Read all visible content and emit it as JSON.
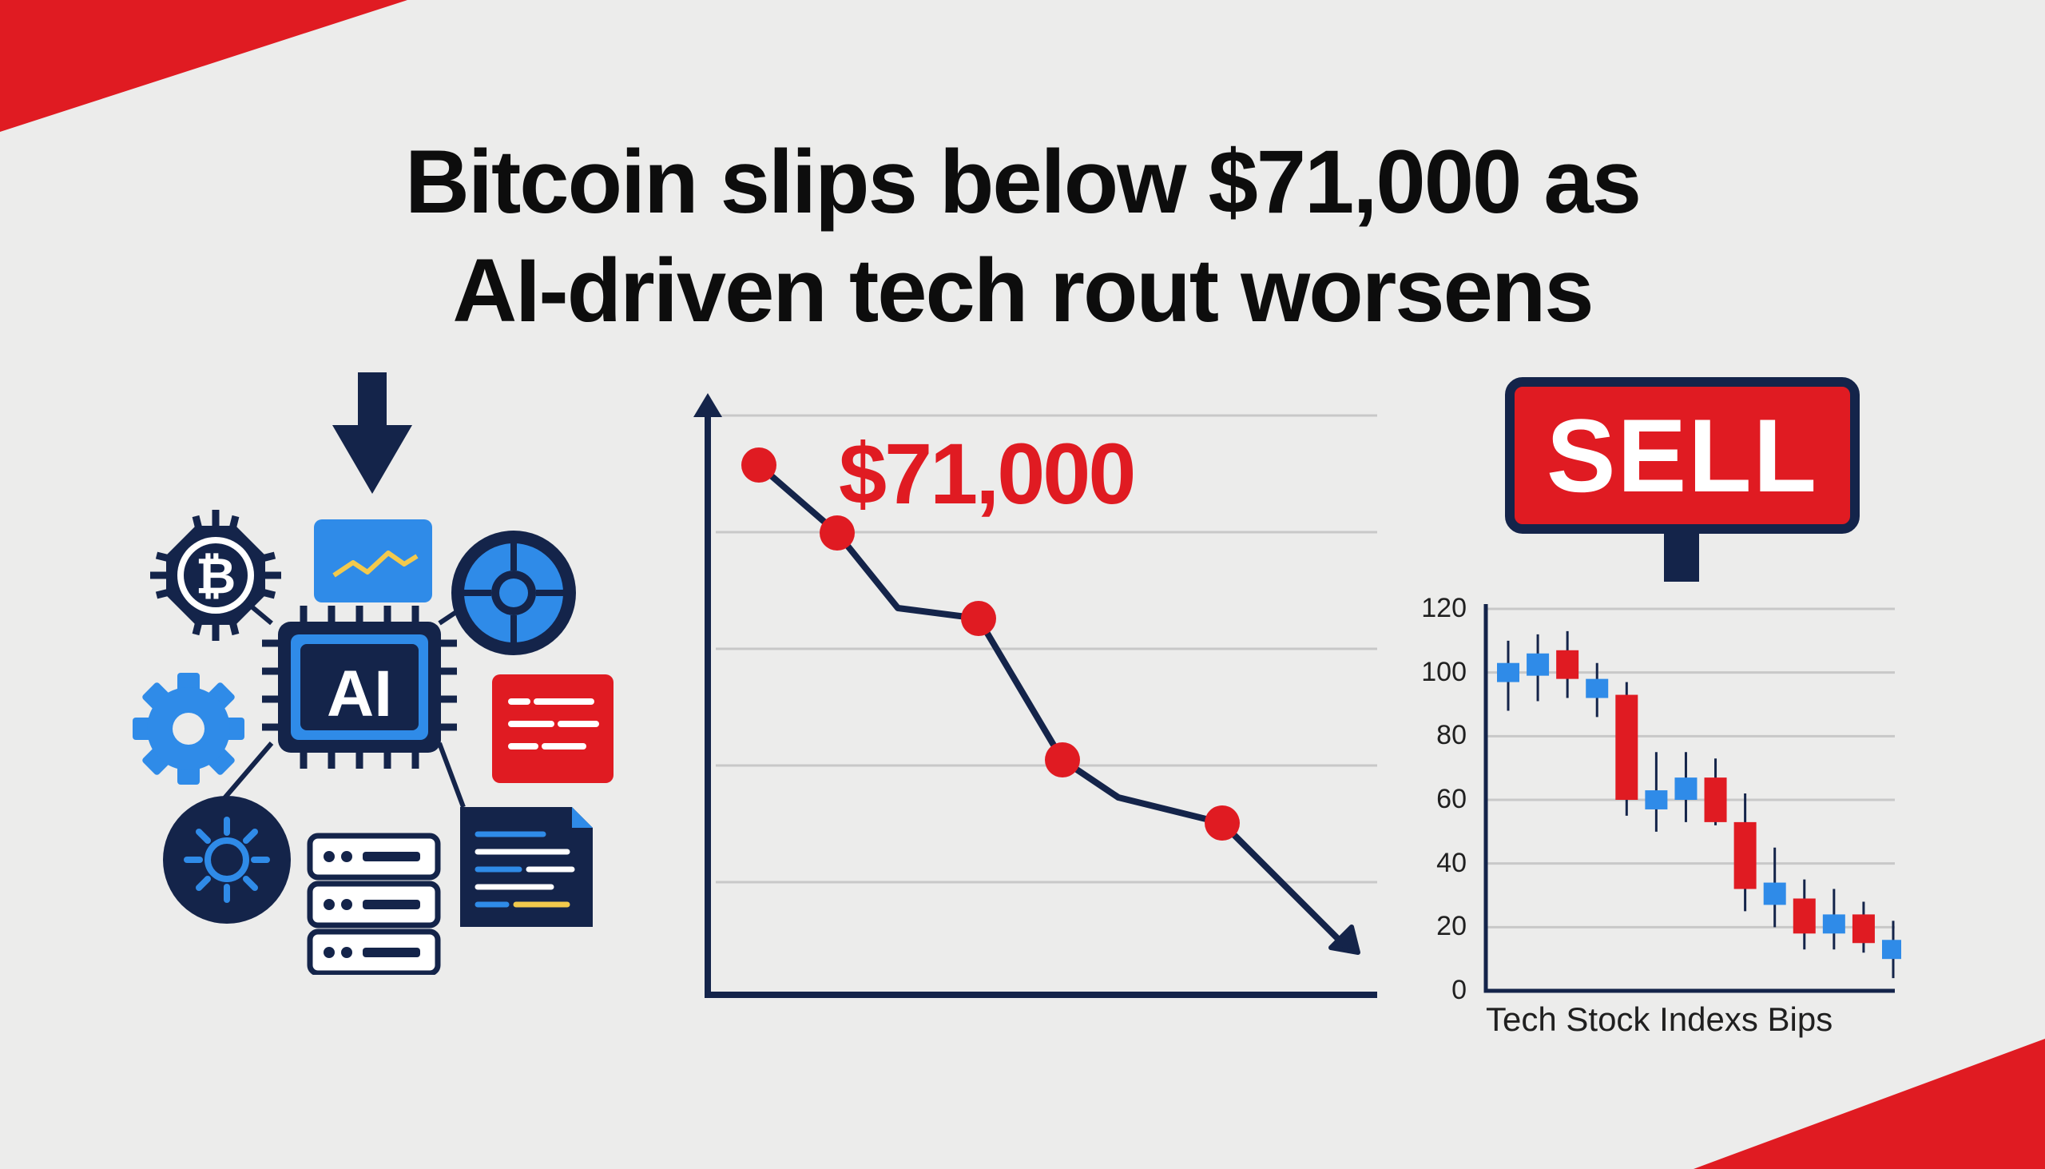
{
  "headline": {
    "line1": "Bitcoin slips below $71,000 as",
    "line2": "AI-driven tech rout worsens"
  },
  "cluster": {
    "center_label": "AI",
    "icons": [
      "down-arrow-icon",
      "bitcoin-chip-icon",
      "monitor-chart-icon",
      "target-globe-icon",
      "gear-icon",
      "document-red-icon",
      "sun-circle-icon",
      "server-stack-icon",
      "file-code-icon",
      "ai-chip-icon"
    ]
  },
  "price_chart": {
    "label": "$71,000",
    "color": "#e01b22",
    "axis_color": "#14244a"
  },
  "sell_sign": {
    "label": "SELL"
  },
  "chart_data": {
    "type": "candlestick",
    "xlabel": "Tech Stock Indexs Bips",
    "ylim": [
      0,
      120
    ],
    "yticks": [
      "0",
      "20",
      "40",
      "60",
      "80",
      "100",
      "120"
    ],
    "candles": [
      {
        "open": 97,
        "close": 103,
        "high": 110,
        "low": 88,
        "dir": "up"
      },
      {
        "open": 99,
        "close": 106,
        "high": 112,
        "low": 91,
        "dir": "up"
      },
      {
        "open": 107,
        "close": 98,
        "high": 113,
        "low": 92,
        "dir": "down"
      },
      {
        "open": 92,
        "close": 98,
        "high": 103,
        "low": 86,
        "dir": "up"
      },
      {
        "open": 93,
        "close": 60,
        "high": 97,
        "low": 55,
        "dir": "down"
      },
      {
        "open": 57,
        "close": 63,
        "high": 75,
        "low": 50,
        "dir": "up"
      },
      {
        "open": 60,
        "close": 67,
        "high": 75,
        "low": 53,
        "dir": "up"
      },
      {
        "open": 67,
        "close": 53,
        "high": 73,
        "low": 52,
        "dir": "down"
      },
      {
        "open": 53,
        "close": 32,
        "high": 62,
        "low": 25,
        "dir": "down"
      },
      {
        "open": 27,
        "close": 34,
        "high": 45,
        "low": 20,
        "dir": "up"
      },
      {
        "open": 29,
        "close": 18,
        "high": 35,
        "low": 13,
        "dir": "down"
      },
      {
        "open": 18,
        "close": 24,
        "high": 32,
        "low": 13,
        "dir": "up"
      },
      {
        "open": 24,
        "close": 15,
        "high": 28,
        "low": 12,
        "dir": "down"
      },
      {
        "open": 10,
        "close": 16,
        "high": 22,
        "low": 4,
        "dir": "up"
      }
    ],
    "colors": {
      "up": "#2f8be8",
      "down": "#e01b22"
    },
    "grid": true
  }
}
